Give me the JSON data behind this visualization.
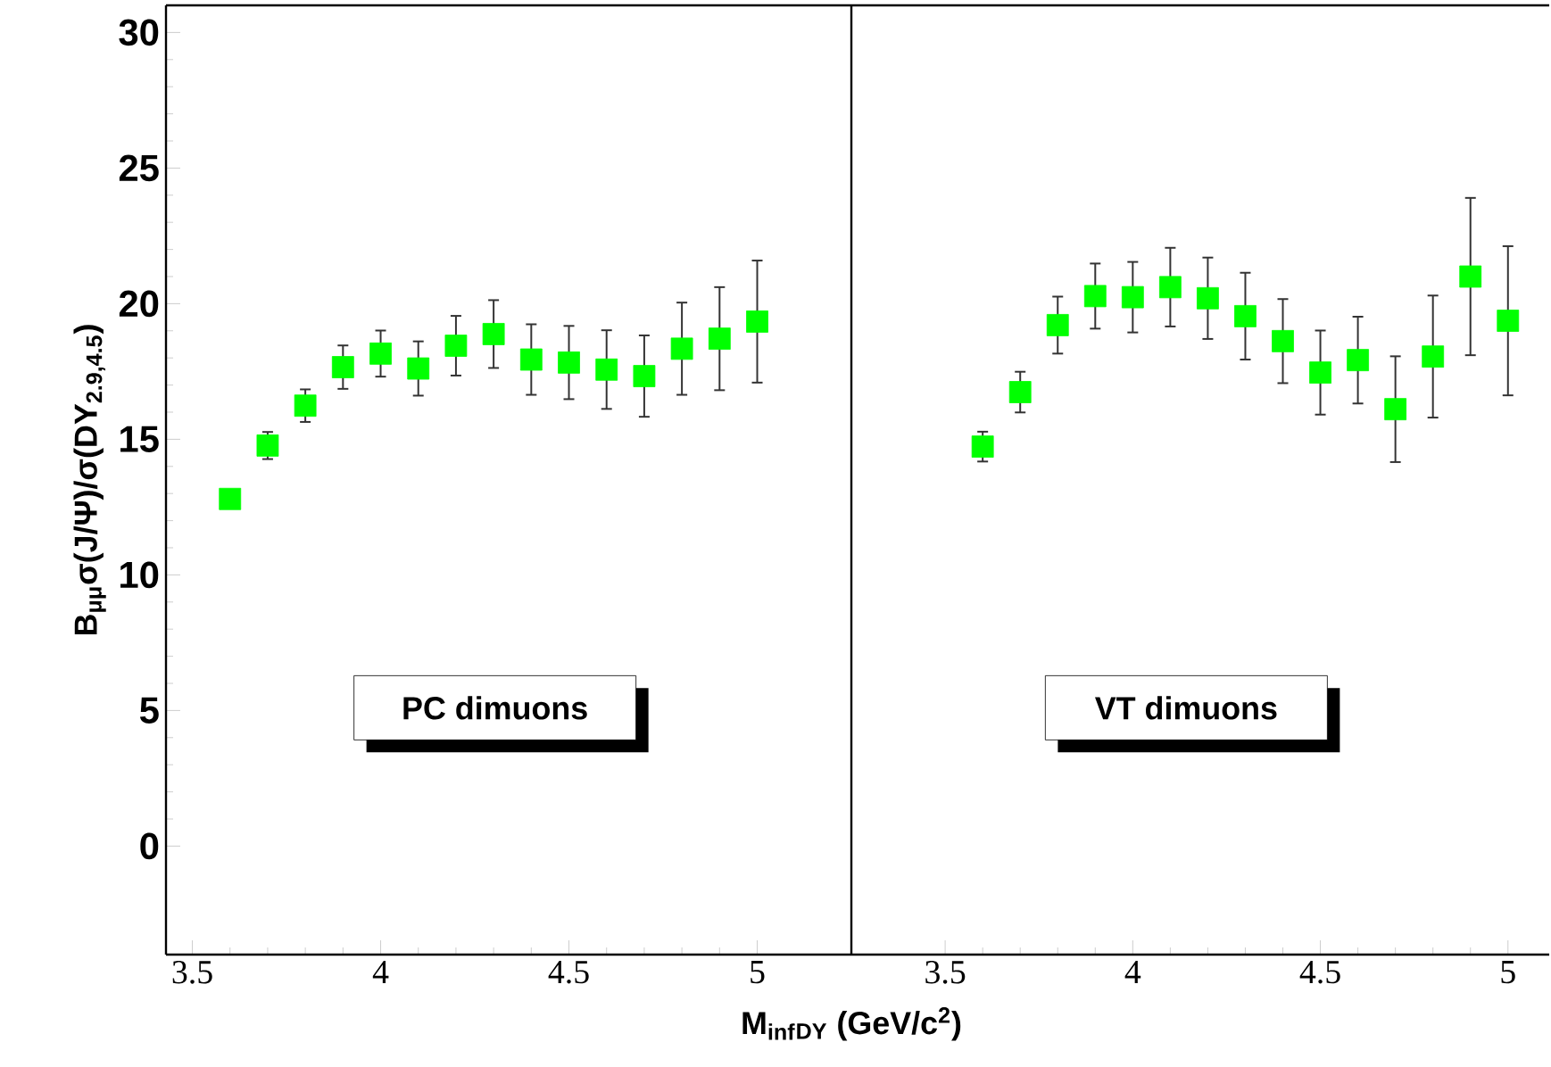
{
  "chart_data": [
    {
      "type": "scatter",
      "xlabel": "M$_{inf}$$_{DY}$ (GeV/c$^{2}$)",
      "ylabel": "B$_{μμ}$σ(J/Ψ)/σ(DY$_{2.9,4.5}$)",
      "x": [
        3.6,
        3.7,
        3.8,
        3.9,
        4.0,
        4.1,
        4.2,
        4.3,
        4.4,
        4.5,
        4.6,
        4.7,
        4.8,
        4.9,
        5.0
      ],
      "series": [
        {
          "color": "#00ff00",
          "values": [
            12.8,
            14.77,
            16.24,
            17.66,
            18.16,
            17.61,
            18.45,
            18.88,
            17.94,
            17.83,
            17.57,
            17.33,
            18.34,
            18.71,
            19.34
          ],
          "errors": [
            null,
            0.5,
            0.6,
            0.8,
            0.85,
            1.0,
            1.1,
            1.25,
            1.3,
            1.35,
            1.45,
            1.5,
            1.7,
            1.9,
            2.25
          ]
        }
      ],
      "marker": "square",
      "xlim": [
        3.43,
        5.25
      ],
      "xticks": [
        3.5,
        4,
        4.5,
        5
      ],
      "ylim": [
        -4,
        31
      ],
      "yticks": [
        0,
        5,
        10,
        15,
        20,
        25,
        30
      ],
      "annotations": [
        "PC dimuons"
      ]
    },
    {
      "type": "scatter",
      "x": [
        3.6,
        3.7,
        3.8,
        3.9,
        4.0,
        4.1,
        4.2,
        4.3,
        4.4,
        4.5,
        4.6,
        4.7,
        4.8,
        4.9,
        5.0
      ],
      "series": [
        {
          "color": "#00ff00",
          "values": [
            14.73,
            16.74,
            19.21,
            20.28,
            20.24,
            20.61,
            20.2,
            19.54,
            18.62,
            17.46,
            17.92,
            16.11,
            18.05,
            21.0,
            19.37
          ],
          "errors": [
            0.55,
            0.75,
            1.05,
            1.2,
            1.3,
            1.45,
            1.5,
            1.6,
            1.55,
            1.55,
            1.6,
            1.95,
            2.25,
            2.9,
            2.75
          ]
        }
      ],
      "marker": "square",
      "xlim": [
        3.25,
        5.11
      ],
      "xticks": [
        3.5,
        4,
        4.5,
        5
      ],
      "ylim": [
        -4,
        31
      ],
      "yticks": [
        0,
        5,
        10,
        15,
        20,
        25,
        30
      ],
      "tick_labels": "x",
      "annotations": [
        "VT dimuons"
      ]
    }
  ]
}
